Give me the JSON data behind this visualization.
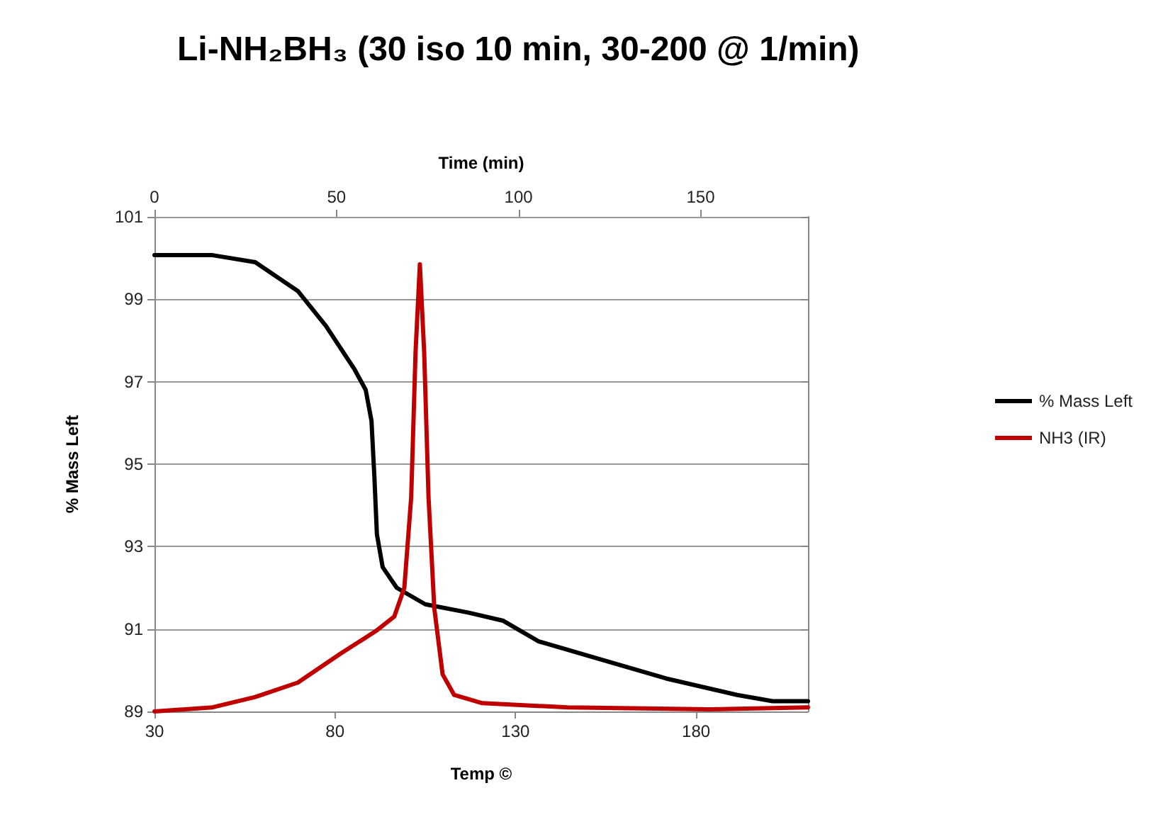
{
  "chart_data": {
    "type": "line",
    "title": "Li-NH₂BH₃ (30 iso 10 min, 30-200 @ 1/min)",
    "xlabel": "Temp ©",
    "x2label": "Time (min)",
    "ylabel": "% Mass Left",
    "xlim": [
      30,
      211
    ],
    "xticks": [
      30,
      80,
      130,
      180
    ],
    "x2lim": [
      0,
      179.5
    ],
    "x2ticks": [
      0,
      50,
      100,
      150
    ],
    "ylim": [
      89,
      101
    ],
    "yticks": [
      89,
      91,
      93,
      95,
      97,
      99,
      101
    ],
    "grid": "y",
    "legend": "right",
    "marker": "none",
    "line_style": "solid",
    "series": [
      {
        "name": "% Mass Left",
        "color": "#000000",
        "x": [
          30,
          46.1,
          57.9,
          69.7,
          77.5,
          85.4,
          88.5,
          90.1,
          90.9,
          91.6,
          93.2,
          97.1,
          105,
          116.8,
          126.6,
          136.4,
          152.1,
          171.7,
          191.4,
          201.2,
          211
        ],
        "values": [
          100.07,
          100.07,
          99.9,
          99.2,
          98.35,
          97.3,
          96.8,
          96.05,
          94.7,
          93.3,
          92.5,
          92.0,
          91.6,
          91.4,
          91.2,
          90.7,
          90.3,
          89.8,
          89.4,
          89.25,
          89.25
        ]
      },
      {
        "name": "NH3 (IR)",
        "color": "#c00000",
        "x": [
          30,
          46.1,
          57.9,
          69.7,
          81.5,
          91.3,
          96.4,
          99.2,
          101.1,
          102.3,
          103.5,
          104.7,
          105.9,
          107.5,
          109.8,
          113,
          120.8,
          144.4,
          183.6,
          211
        ],
        "values": [
          89.0,
          89.1,
          89.35,
          89.7,
          90.4,
          90.95,
          91.3,
          92.0,
          94.2,
          97.7,
          99.85,
          97.7,
          94.2,
          91.5,
          89.9,
          89.4,
          89.2,
          89.1,
          89.05,
          89.1
        ]
      }
    ]
  }
}
